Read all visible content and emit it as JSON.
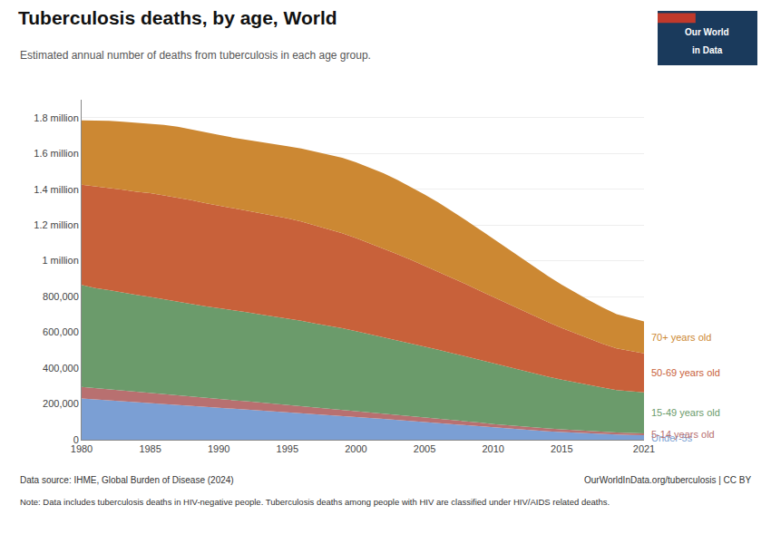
{
  "chart_data": {
    "type": "area",
    "stacked": true,
    "title": "Tuberculosis deaths, by age, World",
    "subtitle": "Estimated annual number of deaths from tuberculosis in each age group.",
    "footer": [
      "Data source: IHME, Global Burden of Disease (2024)",
      "OurWorldInData.org/tuberculosis | CC BY"
    ],
    "note": "Note: Data includes tuberculosis deaths in HIV-negative people. Tuberculosis deaths among people with HIV are classified under HIV/AIDS related deaths.",
    "logo": {
      "texts": [
        "Our World",
        "in Data"
      ],
      "colors": [
        "#1a3a5c",
        "#c0392b"
      ]
    },
    "x": [
      1980,
      1981,
      1982,
      1983,
      1984,
      1985,
      1986,
      1987,
      1988,
      1989,
      1990,
      1991,
      1992,
      1993,
      1994,
      1995,
      1996,
      1997,
      1998,
      1999,
      2000,
      2001,
      2002,
      2003,
      2004,
      2005,
      2006,
      2007,
      2008,
      2009,
      2010,
      2011,
      2012,
      2013,
      2014,
      2015,
      2016,
      2017,
      2018,
      2019,
      2020,
      2021
    ],
    "series": [
      {
        "name": "Under-5s",
        "color": "#7b9fd4",
        "values": [
          230000,
          225000,
          220000,
          215000,
          210000,
          205000,
          200000,
          195000,
          190000,
          185000,
          180000,
          175000,
          170000,
          165000,
          160000,
          155000,
          150000,
          145000,
          140000,
          135000,
          128000,
          122000,
          116000,
          110000,
          104000,
          98000,
          92000,
          86000,
          80000,
          74000,
          68000,
          62000,
          57000,
          52000,
          47000,
          43000,
          39000,
          35000,
          32000,
          29000,
          27000,
          25000
        ]
      },
      {
        "name": "5-14 years old",
        "color": "#b87070",
        "values": [
          65000,
          63000,
          61000,
          59000,
          57000,
          56000,
          54000,
          52000,
          51000,
          49000,
          48000,
          46000,
          45000,
          43000,
          42000,
          40000,
          39000,
          37000,
          36000,
          34000,
          33000,
          31000,
          30000,
          29000,
          27000,
          26000,
          25000,
          24000,
          23000,
          22000,
          20000,
          19000,
          18000,
          17000,
          16000,
          15000,
          14000,
          13000,
          12000,
          11000,
          10500,
          10000
        ]
      },
      {
        "name": "15-49 years old",
        "color": "#6b9b6b",
        "values": [
          570000,
          560000,
          555000,
          548000,
          542000,
          537000,
          530000,
          525000,
          518000,
          512000,
          508000,
          503000,
          498000,
          493000,
          488000,
          482000,
          476000,
          468000,
          461000,
          454000,
          446000,
          437000,
          428000,
          418000,
          408000,
          397000,
          386000,
          374000,
          362000,
          350000,
          338000,
          325000,
          313000,
          301000,
          289000,
          278000,
          267000,
          257000,
          247000,
          238000,
          235000,
          230000
        ]
      },
      {
        "name": "50-69 years old",
        "color": "#c8613a",
        "values": [
          560000,
          568000,
          572000,
          575000,
          577000,
          580000,
          582000,
          582000,
          580000,
          577000,
          573000,
          570000,
          568000,
          566000,
          563000,
          560000,
          555000,
          548000,
          540000,
          531000,
          520000,
          508000,
          495000,
          481000,
          467000,
          452000,
          437000,
          421000,
          405000,
          388000,
          372000,
          355000,
          338000,
          322000,
          305000,
          289000,
          274000,
          259000,
          245000,
          233000,
          225000,
          218000
        ]
      },
      {
        "name": "70+ years old",
        "color": "#cc8833",
        "values": [
          360000,
          368000,
          374000,
          380000,
          385000,
          390000,
          393000,
          395000,
          396000,
          396000,
          395000,
          395000,
          395000,
          397000,
          399000,
          403000,
          408000,
          413000,
          418000,
          422000,
          424000,
          423000,
          420000,
          415000,
          407000,
          398000,
          386000,
          373000,
          358000,
          342000,
          325000,
          308000,
          290000,
          274000,
          257000,
          242000,
          228000,
          215000,
          202000,
          191000,
          184000,
          178000
        ]
      }
    ],
    "xlim": [
      1980,
      2021
    ],
    "xticks": [
      1980,
      1985,
      1990,
      1995,
      2000,
      2005,
      2010,
      2015,
      2021
    ],
    "ylim": [
      0,
      1900000
    ],
    "yticks": [
      0,
      {
        "value": 200000,
        "label": "200,000"
      },
      {
        "value": 400000,
        "label": "400,000"
      },
      {
        "value": 600000,
        "label": "600,000"
      },
      {
        "value": 800000,
        "label": "800,000"
      },
      {
        "value": 1000000,
        "label": "1 million"
      },
      {
        "value": 1200000,
        "label": "1.2 million"
      },
      {
        "value": 1400000,
        "label": "1.4 million"
      },
      {
        "value": 1600000,
        "label": "1.6 million"
      },
      {
        "value": 1800000,
        "label": "1.8 million"
      }
    ],
    "grid": true
  }
}
